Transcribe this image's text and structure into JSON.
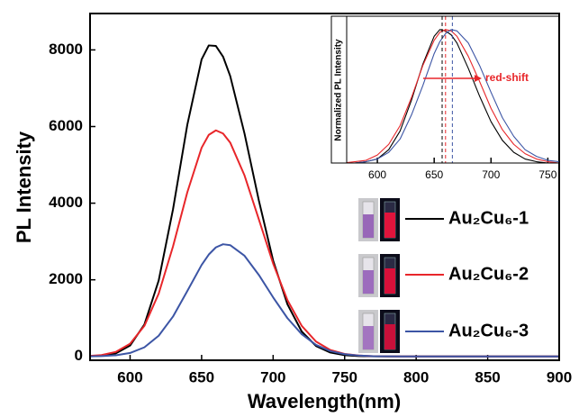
{
  "chart_data": [
    {
      "type": "line",
      "xlabel": "Wavelength(nm)",
      "ylabel": "PL Intensity",
      "xlim": [
        572,
        900
      ],
      "ylim": [
        -100,
        8950
      ],
      "xticks": [
        600,
        650,
        700,
        750,
        800,
        850,
        900
      ],
      "yticks": [
        0,
        2000,
        4000,
        6000,
        8000
      ],
      "x": [
        570,
        580,
        590,
        600,
        610,
        620,
        630,
        640,
        650,
        655,
        660,
        665,
        670,
        680,
        690,
        700,
        710,
        720,
        730,
        740,
        750,
        760,
        770,
        780,
        790,
        800,
        810,
        820,
        830,
        840,
        850,
        860,
        870,
        880,
        890,
        900
      ],
      "series": [
        {
          "name": "Au₂Cu₆-1",
          "color": "#000000",
          "values": [
            3,
            18,
            79,
            284,
            834,
            1983,
            3839,
            6045,
            7752,
            8117,
            8103,
            7824,
            7318,
            5816,
            4074,
            2503,
            1362,
            649,
            272,
            101,
            33,
            10,
            3,
            1,
            0,
            0,
            0,
            0,
            0,
            0,
            0,
            0,
            0,
            0,
            0,
            0
          ]
        },
        {
          "name": "Au₂Cu₆-2",
          "color": "#e8262a",
          "values": [
            9,
            35,
            117,
            331,
            798,
            1640,
            2871,
            4284,
            5446,
            5783,
            5900,
            5818,
            5581,
            4724,
            3579,
            2425,
            1470,
            798,
            388,
            168,
            65,
            23,
            7,
            2,
            0,
            0,
            0,
            0,
            0,
            0,
            0,
            0,
            0,
            0,
            0,
            0
          ]
        },
        {
          "name": "Au₂Cu₆-3",
          "color": "#3c55a5",
          "values": [
            2,
            8,
            29,
            90,
            238,
            540,
            1041,
            1706,
            2387,
            2659,
            2847,
            2928,
            2904,
            2627,
            2128,
            1542,
            999,
            580,
            301,
            140,
            58,
            22,
            7,
            2,
            0,
            0,
            0,
            0,
            0,
            0,
            0,
            0,
            0,
            0,
            0,
            0
          ]
        }
      ]
    },
    {
      "type": "line",
      "ylabel": "Normalized PL Intensity",
      "annotation": "red-shift",
      "xlim": [
        573,
        760
      ],
      "ylim": [
        0,
        1.1
      ],
      "xticks": [
        600,
        650,
        700,
        750
      ],
      "x": [
        560,
        570,
        580,
        590,
        600,
        610,
        620,
        630,
        640,
        650,
        655,
        660,
        665,
        670,
        680,
        690,
        700,
        710,
        720,
        730,
        740,
        750,
        760
      ],
      "series": [
        {
          "color": "#000000",
          "peak": 657,
          "values": [
            0,
            0,
            0,
            0.01,
            0.03,
            0.1,
            0.24,
            0.47,
            0.74,
            0.95,
            1,
            0.99,
            0.96,
            0.9,
            0.71,
            0.5,
            0.31,
            0.17,
            0.08,
            0.03,
            0.01,
            0,
            0
          ]
        },
        {
          "color": "#e8262a",
          "peak": 660,
          "values": [
            0,
            0,
            0.01,
            0.02,
            0.06,
            0.14,
            0.28,
            0.49,
            0.73,
            0.92,
            0.98,
            1,
            0.99,
            0.95,
            0.8,
            0.61,
            0.41,
            0.25,
            0.14,
            0.07,
            0.03,
            0.01,
            0
          ]
        },
        {
          "color": "#3c55a5",
          "peak": 666,
          "values": [
            0,
            0,
            0,
            0.01,
            0.03,
            0.08,
            0.18,
            0.36,
            0.58,
            0.82,
            0.91,
            0.97,
            1,
            0.99,
            0.9,
            0.73,
            0.53,
            0.34,
            0.2,
            0.1,
            0.05,
            0.02,
            0.01
          ]
        }
      ]
    }
  ]
}
